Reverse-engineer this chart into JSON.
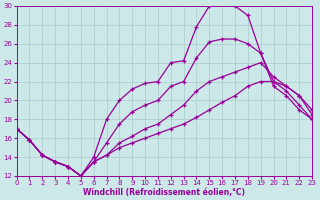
{
  "xlabel": "Windchill (Refroidissement éolien,°C)",
  "background_color": "#cce8e8",
  "line_color": "#990099",
  "grid_color": "#aacccc",
  "xlim": [
    0,
    23
  ],
  "ylim": [
    12,
    30
  ],
  "xticks": [
    0,
    1,
    2,
    3,
    4,
    5,
    6,
    7,
    8,
    9,
    10,
    11,
    12,
    13,
    14,
    15,
    16,
    17,
    18,
    19,
    20,
    21,
    22,
    23
  ],
  "yticks": [
    12,
    14,
    16,
    18,
    20,
    22,
    24,
    26,
    28,
    30
  ],
  "curve_top_x": [
    0,
    1,
    2,
    3,
    4,
    5,
    6,
    7,
    8,
    9,
    10,
    11,
    12,
    13,
    14,
    15,
    16,
    17,
    18,
    19,
    20,
    21,
    22,
    23
  ],
  "curve_top_y": [
    17.0,
    15.8,
    14.2,
    13.5,
    13.0,
    12.0,
    14.0,
    18.0,
    20.0,
    21.2,
    21.8,
    22.0,
    24.0,
    24.2,
    27.8,
    30.0,
    30.2,
    30.0,
    29.0,
    25.0,
    21.5,
    20.5,
    19.0,
    18.0
  ],
  "curve_mid1_x": [
    0,
    1,
    2,
    3,
    4,
    5,
    6,
    7,
    8,
    9,
    10,
    11,
    12,
    13,
    14,
    15,
    16,
    17,
    18,
    19,
    20,
    21,
    22,
    23
  ],
  "curve_mid1_y": [
    17.0,
    15.8,
    14.2,
    13.5,
    13.0,
    12.0,
    13.5,
    15.5,
    17.5,
    18.8,
    19.5,
    20.0,
    21.5,
    22.0,
    24.5,
    26.2,
    26.5,
    26.5,
    26.0,
    25.0,
    22.0,
    21.0,
    19.5,
    18.0
  ],
  "curve_mid2_x": [
    0,
    1,
    2,
    3,
    4,
    5,
    6,
    7,
    8,
    9,
    10,
    11,
    12,
    13,
    14,
    15,
    16,
    17,
    18,
    19,
    20,
    21,
    22,
    23
  ],
  "curve_mid2_y": [
    17.0,
    15.8,
    14.2,
    13.5,
    13.0,
    12.0,
    13.5,
    14.2,
    15.5,
    16.2,
    17.0,
    17.5,
    18.5,
    19.5,
    21.0,
    22.0,
    22.5,
    23.0,
    23.5,
    24.0,
    22.5,
    21.5,
    20.5,
    19.0
  ],
  "curve_bot_x": [
    0,
    1,
    2,
    3,
    4,
    5,
    6,
    7,
    8,
    9,
    10,
    11,
    12,
    13,
    14,
    15,
    16,
    17,
    18,
    19,
    20,
    21,
    22,
    23
  ],
  "curve_bot_y": [
    17.0,
    15.8,
    14.2,
    13.5,
    13.0,
    12.0,
    13.5,
    14.2,
    15.0,
    15.5,
    16.0,
    16.5,
    17.0,
    17.5,
    18.2,
    19.0,
    19.8,
    20.5,
    21.5,
    22.0,
    22.0,
    21.5,
    20.5,
    18.5
  ]
}
